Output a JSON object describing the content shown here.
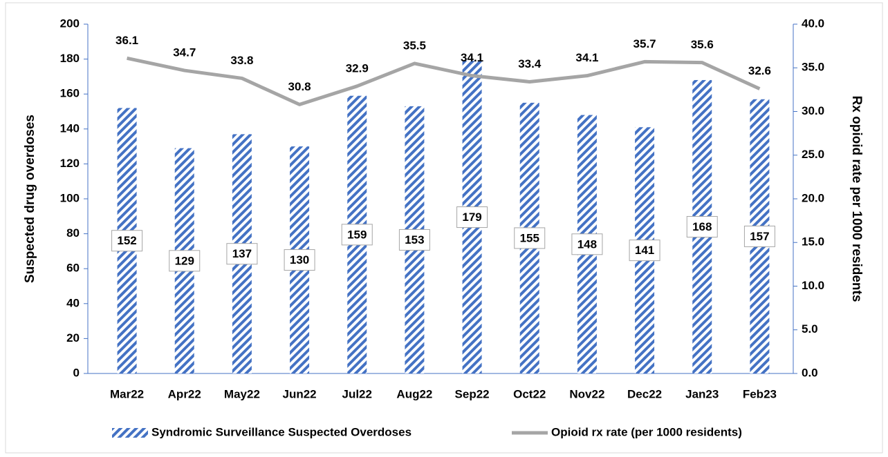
{
  "chart_data": {
    "type": "bar-line",
    "categories": [
      "Mar22",
      "Apr22",
      "May22",
      "Jun22",
      "Jul22",
      "Aug22",
      "Sep22",
      "Oct22",
      "Nov22",
      "Dec22",
      "Jan23",
      "Feb23"
    ],
    "y_label": "Suspected drug overdoses",
    "y2_label": "Rx opioid rate per 1000 residents",
    "ylim": [
      0,
      200
    ],
    "yticks": [
      0,
      20,
      40,
      60,
      80,
      100,
      120,
      140,
      160,
      180,
      200
    ],
    "y2lim": [
      0,
      40
    ],
    "y2ticks": [
      {
        "value": 0,
        "label": "0.0"
      },
      {
        "value": 5,
        "label": "5.0"
      },
      {
        "value": 10,
        "label": "10.0"
      },
      {
        "value": 15,
        "label": "15.0"
      },
      {
        "value": 20,
        "label": "20.0"
      },
      {
        "value": 25,
        "label": "25.0"
      },
      {
        "value": 30,
        "label": "30.0"
      },
      {
        "value": 35,
        "label": "35.0"
      },
      {
        "value": 40,
        "label": "40.0"
      }
    ],
    "series": [
      {
        "name": "Syndromic Surveillance Suspected Overdoses",
        "type": "bar",
        "color": "#4472c4",
        "values": [
          152,
          129,
          137,
          130,
          159,
          153,
          179,
          155,
          148,
          141,
          168,
          157
        ]
      },
      {
        "name": "Opioid rx rate (per 1000 residents)",
        "type": "line",
        "axis": "y2",
        "color": "#a5a5a5",
        "values": [
          36.1,
          34.7,
          33.8,
          30.8,
          32.9,
          35.5,
          34.1,
          33.4,
          34.1,
          35.7,
          35.6,
          32.6
        ]
      }
    ],
    "legend": "bottom"
  }
}
